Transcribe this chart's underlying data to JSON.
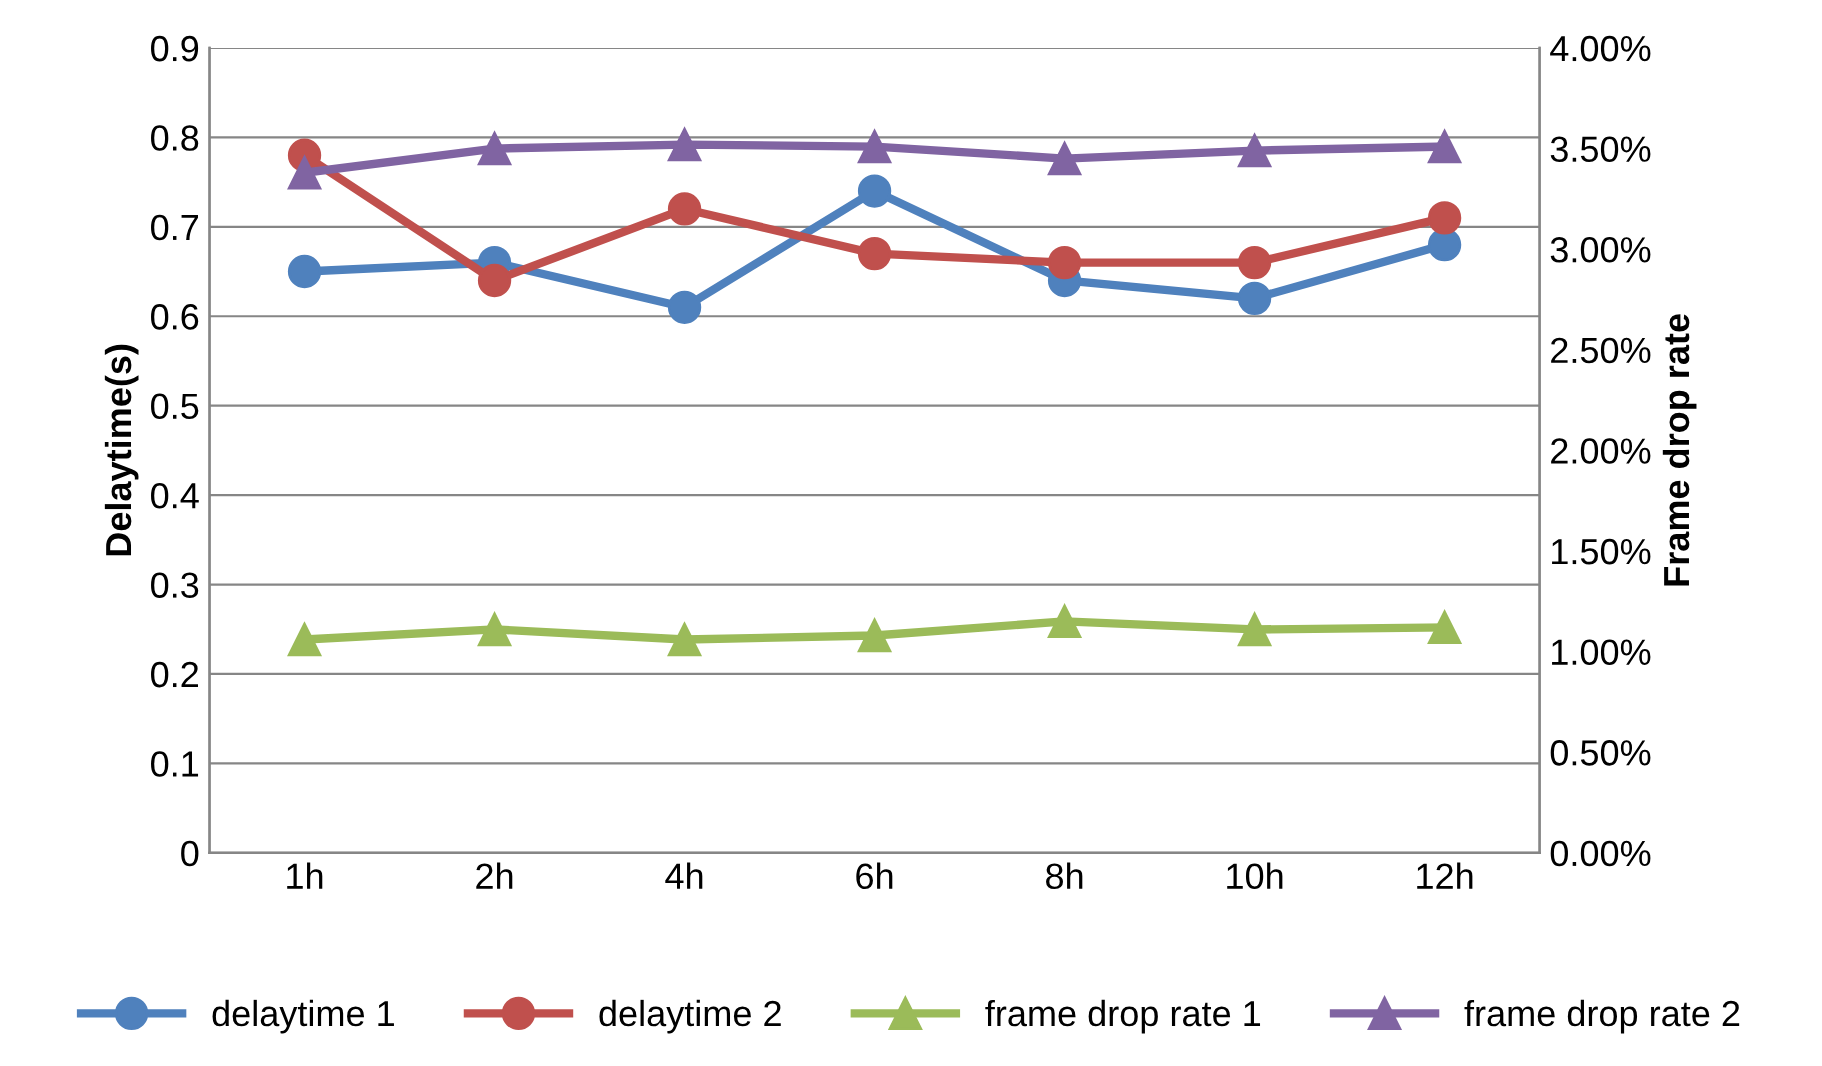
{
  "chart_data": {
    "type": "line",
    "ylabel": "Delaytime(s)",
    "y2label": "Frame drop rate",
    "categories": [
      "1h",
      "2h",
      "4h",
      "6h",
      "8h",
      "10h",
      "12h"
    ],
    "series": [
      {
        "name": "delaytime 1",
        "color": "#4f81bd",
        "marker": "circle",
        "values": [
          0.65,
          0.66,
          0.61,
          0.74,
          0.64,
          0.62,
          0.68
        ]
      },
      {
        "name": "delaytime 2",
        "color": "#c0504d",
        "marker": "circle",
        "values": [
          0.78,
          0.64,
          0.72,
          0.67,
          0.66,
          0.66,
          0.71
        ]
      },
      {
        "name": "frame drop rate 1",
        "color": "#9bbb59",
        "marker": "triangle",
        "axis": "y2",
        "values": [
          1.06,
          1.11,
          1.06,
          1.08,
          1.15,
          1.11,
          1.12
        ]
      },
      {
        "name": "frame drop rate 2",
        "color": "#8064a2",
        "marker": "triangle",
        "axis": "y2",
        "values": [
          3.38,
          3.5,
          3.52,
          3.51,
          3.45,
          3.49,
          3.51
        ]
      }
    ],
    "ylim": [
      0,
      0.9
    ],
    "yticks": [
      0,
      0.1,
      0.2,
      0.3,
      0.4,
      0.5,
      0.6,
      0.7,
      0.8,
      0.9
    ],
    "y2lim": [
      0,
      4
    ],
    "y2ticks": [
      {
        "value": 0,
        "label": "0.00%"
      },
      {
        "value": 0.5,
        "label": "0.50%"
      },
      {
        "value": 1,
        "label": "1.00%"
      },
      {
        "value": 1.5,
        "label": "1.50%"
      },
      {
        "value": 2,
        "label": "2.00%"
      },
      {
        "value": 2.5,
        "label": "2.50%"
      },
      {
        "value": 3,
        "label": "3.00%"
      },
      {
        "value": 3.5,
        "label": "3.50%"
      },
      {
        "value": 4,
        "label": "4.00%"
      }
    ],
    "grid": "y",
    "legend": "bottom",
    "line_style": "solid"
  }
}
